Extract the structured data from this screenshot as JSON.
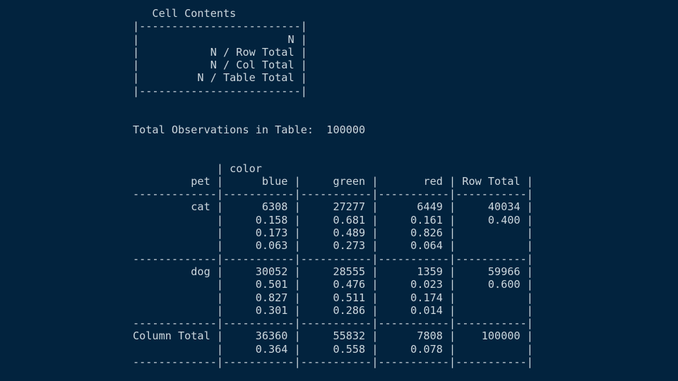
{
  "theme": {
    "background": "#02233e",
    "text_color": "#ccd6dd"
  },
  "cell_contents": {
    "title": "Cell Contents",
    "items": [
      "N",
      "N / Row Total",
      "N / Col Total",
      "N / Table Total"
    ]
  },
  "total_observations": {
    "label": "Total Observations in Table:",
    "value": "100000"
  },
  "crosstable": {
    "column_variable": "color",
    "row_variable": "pet",
    "column_headers": [
      "blue",
      "green",
      "red",
      "Row Total"
    ],
    "rows": [
      {
        "label": "cat",
        "n": [
          "6308",
          "27277",
          "6449"
        ],
        "row_prop": [
          "0.158",
          "0.681",
          "0.161"
        ],
        "col_prop": [
          "0.173",
          "0.489",
          "0.826"
        ],
        "table_prop": [
          "0.063",
          "0.273",
          "0.064"
        ],
        "row_total": "40034",
        "row_total_prop": "0.400"
      },
      {
        "label": "dog",
        "n": [
          "30052",
          "28555",
          "1359"
        ],
        "row_prop": [
          "0.501",
          "0.476",
          "0.023"
        ],
        "col_prop": [
          "0.827",
          "0.511",
          "0.174"
        ],
        "table_prop": [
          "0.301",
          "0.286",
          "0.014"
        ],
        "row_total": "59966",
        "row_total_prop": "0.600"
      }
    ],
    "column_totals": {
      "label": "Column Total",
      "n": [
        "36360",
        "55832",
        "7808"
      ],
      "col_prop": [
        "0.364",
        "0.558",
        "0.078"
      ],
      "grand_total": "100000"
    }
  },
  "console": {
    "lines": [
      "   Cell Contents",
      "|-------------------------|",
      "|                       N |",
      "|           N / Row Total |",
      "|           N / Col Total |",
      "|         N / Table Total |",
      "|-------------------------|",
      "",
      "",
      "Total Observations in Table:  100000",
      "",
      "",
      "             | color ",
      "         pet |      blue |     green |       red | Row Total | ",
      "-------------|-----------|-----------|-----------|-----------|",
      "         cat |      6308 |     27277 |      6449 |     40034 | ",
      "             |     0.158 |     0.681 |     0.161 |     0.400 | ",
      "             |     0.173 |     0.489 |     0.826 |           | ",
      "             |     0.063 |     0.273 |     0.064 |           | ",
      "-------------|-----------|-----------|-----------|-----------|",
      "         dog |     30052 |     28555 |      1359 |     59966 | ",
      "             |     0.501 |     0.476 |     0.023 |     0.600 | ",
      "             |     0.827 |     0.511 |     0.174 |           | ",
      "             |     0.301 |     0.286 |     0.014 |           | ",
      "-------------|-----------|-----------|-----------|-----------|",
      "Column Total |     36360 |     55832 |      7808 |    100000 | ",
      "             |     0.364 |     0.558 |     0.078 |           | ",
      "-------------|-----------|-----------|-----------|-----------|"
    ]
  }
}
